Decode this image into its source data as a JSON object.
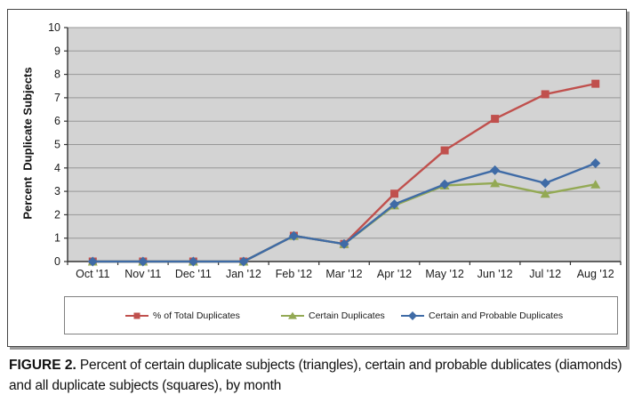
{
  "figure": {
    "caption_prefix": "FIGURE 2.",
    "caption_text": " Percent of certain duplicate subjects (triangles), certain and probable dublicates (diamonds) and all duplicate subjects (squares), by month"
  },
  "chart_data": {
    "type": "line",
    "title": "",
    "xlabel": "",
    "ylabel": "Percent  Duplicate Subjects",
    "ylim": [
      0,
      10
    ],
    "ytick_step": 1,
    "grid": true,
    "legend_position": "bottom",
    "plot_bg": "#D3D3D3",
    "gridline_color": "#979797",
    "axis_color": "#333333",
    "categories": [
      "Oct '11",
      "Nov '11",
      "Dec '11",
      "Jan '12",
      "Feb '12",
      "Mar '12",
      "Apr '12",
      "May '12",
      "Jun '12",
      "Jul '12",
      "Aug '12"
    ],
    "series": [
      {
        "name": "% of Total Duplicates",
        "marker": "square",
        "color": "#C0504D",
        "values": [
          0,
          0,
          0,
          0,
          1.1,
          0.75,
          2.9,
          4.75,
          6.1,
          7.15,
          7.6
        ]
      },
      {
        "name": "Certain Duplicates",
        "marker": "triangle",
        "color": "#93A954",
        "values": [
          0,
          0,
          0,
          0,
          1.1,
          0.75,
          2.4,
          3.25,
          3.35,
          2.9,
          3.3
        ]
      },
      {
        "name": "Certain and Probable Duplicates",
        "marker": "diamond",
        "color": "#3F6BA6",
        "values": [
          0,
          0,
          0,
          0,
          1.1,
          0.75,
          2.45,
          3.3,
          3.9,
          3.35,
          4.2
        ]
      }
    ]
  }
}
